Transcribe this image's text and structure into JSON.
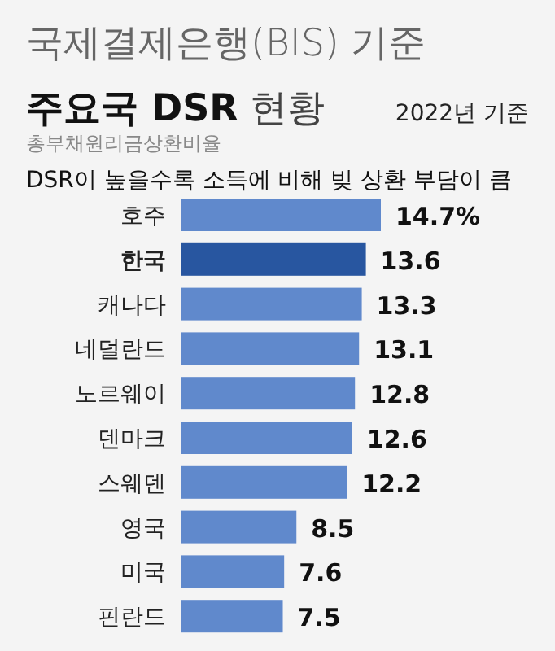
{
  "chart_data": {
    "type": "bar",
    "orientation": "horizontal",
    "title": "국제결제은행(BIS) 기준",
    "subtitle": "주요국 DSR 현황",
    "annotations": [
      "2022년 기준",
      "총부채원리금상환비율",
      "DSR이 높을수록 소득에 비해 빚 상환 부담이 큼"
    ],
    "categories": [
      "호주",
      "한국",
      "캐나다",
      "네덜란드",
      "노르웨이",
      "덴마크",
      "스웨덴",
      "영국",
      "미국",
      "핀란드"
    ],
    "values": [
      14.7,
      13.6,
      13.3,
      13.1,
      12.8,
      12.6,
      12.2,
      8.5,
      7.6,
      7.5
    ],
    "colors": [
      "#6089cc",
      "#2856a0",
      "#6089cc",
      "#6089cc",
      "#6089cc",
      "#6089cc",
      "#6089cc",
      "#6089cc",
      "#6089cc",
      "#6089cc"
    ],
    "value_labels": [
      "14.7%",
      "13.6",
      "13.3",
      "13.1",
      "12.8",
      "12.6",
      "12.2",
      "8.5",
      "7.6",
      "7.5"
    ]
  }
}
